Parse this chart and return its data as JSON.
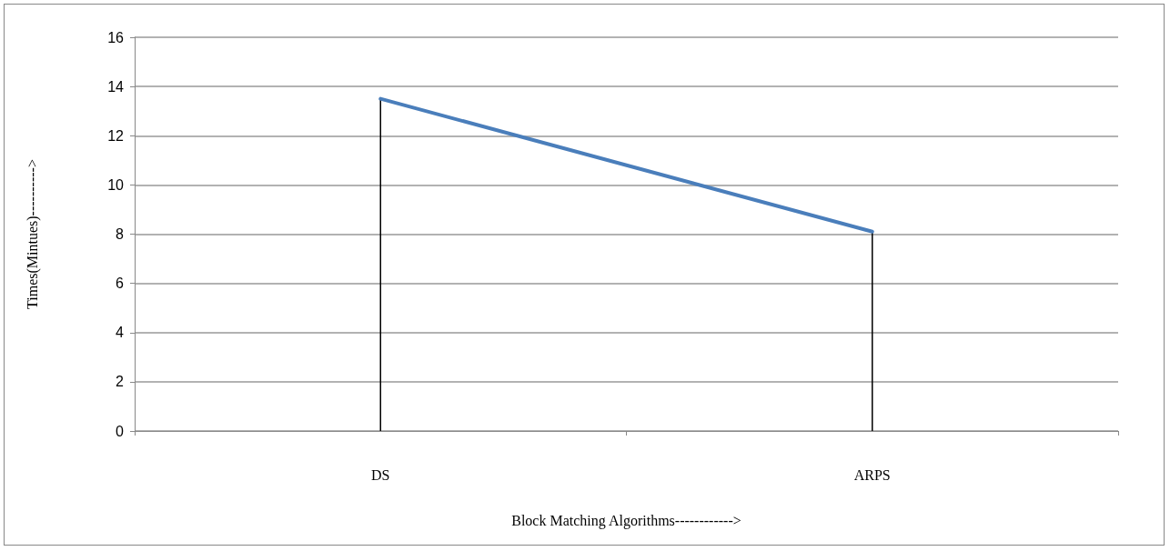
{
  "chart_data": {
    "type": "line",
    "xlabel": "Block Matching Algorithms------------>",
    "ylabel": "Times(Mintues)---------->",
    "categories": [
      "DS",
      "ARPS"
    ],
    "series": [
      {
        "color": "#4a7ebb",
        "values": [
          13.5,
          8.1
        ],
        "errors": [
          [
            0,
            13.5
          ],
          [
            0,
            8.1
          ]
        ]
      }
    ],
    "ylim": [
      0,
      16
    ],
    "yticks": [
      0,
      2,
      4,
      6,
      8,
      10,
      12,
      14,
      16
    ],
    "grid": "y",
    "marker": "none",
    "line_style": "solid"
  }
}
